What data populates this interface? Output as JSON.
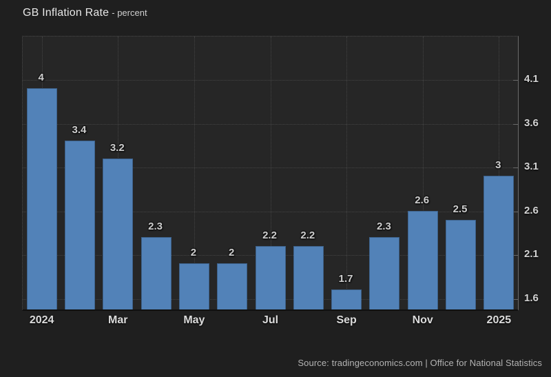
{
  "header": {
    "title": "GB Inflation Rate",
    "subtitle": "- percent"
  },
  "footer": {
    "source_text": "Source: tradingeconomics.com | Office for National Statistics"
  },
  "chart_data": {
    "type": "bar",
    "title": "GB Inflation Rate",
    "ylabel_unit": "percent",
    "values": [
      4,
      3.4,
      3.2,
      2.3,
      2,
      2,
      2.2,
      2.2,
      1.7,
      2.3,
      2.6,
      2.5,
      3
    ],
    "bar_value_labels": [
      "4",
      "3.4",
      "3.2",
      "2.3",
      "2",
      "2",
      "2.2",
      "2.2",
      "1.7",
      "2.3",
      "2.6",
      "2.5",
      "3"
    ],
    "x_ticks": [
      {
        "bar_index": 0,
        "label": "2024"
      },
      {
        "bar_index": 2,
        "label": "Mar"
      },
      {
        "bar_index": 4,
        "label": "May"
      },
      {
        "bar_index": 6,
        "label": "Jul"
      },
      {
        "bar_index": 8,
        "label": "Sep"
      },
      {
        "bar_index": 10,
        "label": "Nov"
      },
      {
        "bar_index": 12,
        "label": "2025"
      }
    ],
    "y_ticks": [
      4.1,
      3.6,
      3.1,
      2.6,
      2.1,
      1.6
    ],
    "y_tick_labels": [
      "4.1",
      "3.6",
      "3.1",
      "2.6",
      "2.1",
      "1.6"
    ],
    "ylim": [
      1.48,
      4.6
    ],
    "y_axis_position": "right",
    "grid": "dotted",
    "legend": "none",
    "colors": {
      "bar": "#5282b8",
      "page_background": "#1f1f1f",
      "plot_background": "#262626",
      "value_label_text": "#cdcdcd",
      "axis_text": "#d4d4d4",
      "axis_line": "#6a6a6a"
    }
  }
}
